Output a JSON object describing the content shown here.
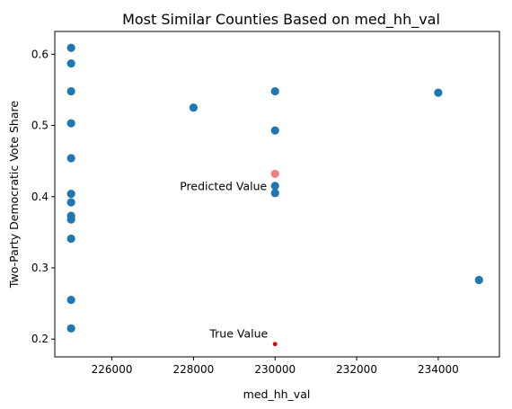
{
  "chart_data": {
    "type": "scatter",
    "title": "Most Similar Counties Based on med_hh_val",
    "xlabel": "med_hh_val",
    "ylabel": "Two-Party Democratic Vote Share",
    "xlim": [
      224600,
      235500
    ],
    "ylim": [
      0.175,
      0.632
    ],
    "xticks": [
      226000,
      228000,
      230000,
      232000,
      234000
    ],
    "yticks": [
      0.2,
      0.3,
      0.4,
      0.5,
      0.6
    ],
    "grid": false,
    "series": [
      {
        "color": "#1f77b4",
        "points": [
          [
            225000,
            0.609
          ],
          [
            225000,
            0.587
          ],
          [
            225000,
            0.548
          ],
          [
            225000,
            0.503
          ],
          [
            225000,
            0.454
          ],
          [
            225000,
            0.404
          ],
          [
            225000,
            0.392
          ],
          [
            225000,
            0.373
          ],
          [
            225000,
            0.368
          ],
          [
            225000,
            0.341
          ],
          [
            225000,
            0.255
          ],
          [
            225000,
            0.215
          ],
          [
            228000,
            0.525
          ],
          [
            230000,
            0.548
          ],
          [
            230000,
            0.493
          ],
          [
            230000,
            0.415
          ],
          [
            230000,
            0.405
          ],
          [
            234000,
            0.546
          ],
          [
            235000,
            0.283
          ]
        ]
      }
    ],
    "highlights": [
      {
        "label": "Predicted Value",
        "x": 230000,
        "y": 0.432,
        "color": "#f08080"
      },
      {
        "label": "True Value",
        "x": 230000,
        "y": 0.193,
        "color": "#e00000"
      }
    ]
  }
}
